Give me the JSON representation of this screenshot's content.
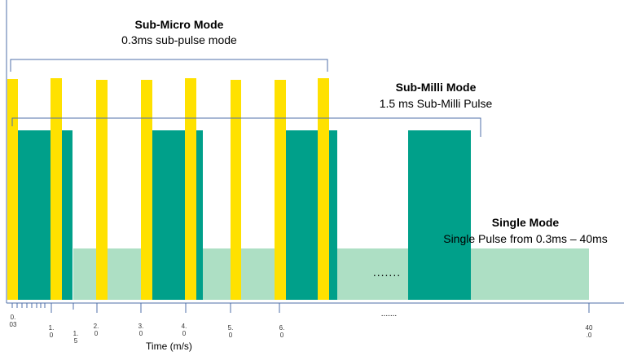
{
  "sub_micro": {
    "title": "Sub-Micro Mode",
    "subtitle": "0.3ms sub-pulse mode"
  },
  "sub_milli": {
    "title": "Sub-Milli Mode",
    "subtitle": "1.5 ms Sub-Milli Pulse"
  },
  "single": {
    "title": "Single Mode",
    "subtitle": "Single Pulse from 0.3ms – 40ms"
  },
  "ellipsis_mid": ".......",
  "ellipsis_axis": ".......",
  "x_axis": {
    "label": "Time (m/s)",
    "tick_labels": [
      {
        "id": "t003",
        "line1": "0.",
        "line2": "03"
      },
      {
        "id": "t10",
        "line1": "1.",
        "line2": "0"
      },
      {
        "id": "t15",
        "line1": "1.",
        "line2": "5"
      },
      {
        "id": "t20",
        "line1": "2.",
        "line2": "0"
      },
      {
        "id": "t30",
        "line1": "3.",
        "line2": "0"
      },
      {
        "id": "t40",
        "line1": "4.",
        "line2": "0"
      },
      {
        "id": "t50",
        "line1": "5.",
        "line2": "0"
      },
      {
        "id": "t60",
        "line1": "6.",
        "line2": "0"
      },
      {
        "id": "t400",
        "line1": "40",
        "line2": ".0"
      }
    ]
  },
  "colors": {
    "sub_micro_pulse": "#FFE100",
    "sub_milli_pulse": "#00A08A",
    "single_pulse": "#ADDFC4",
    "bracket": "#4F6FA8",
    "axis": "#4F6FA8"
  }
}
